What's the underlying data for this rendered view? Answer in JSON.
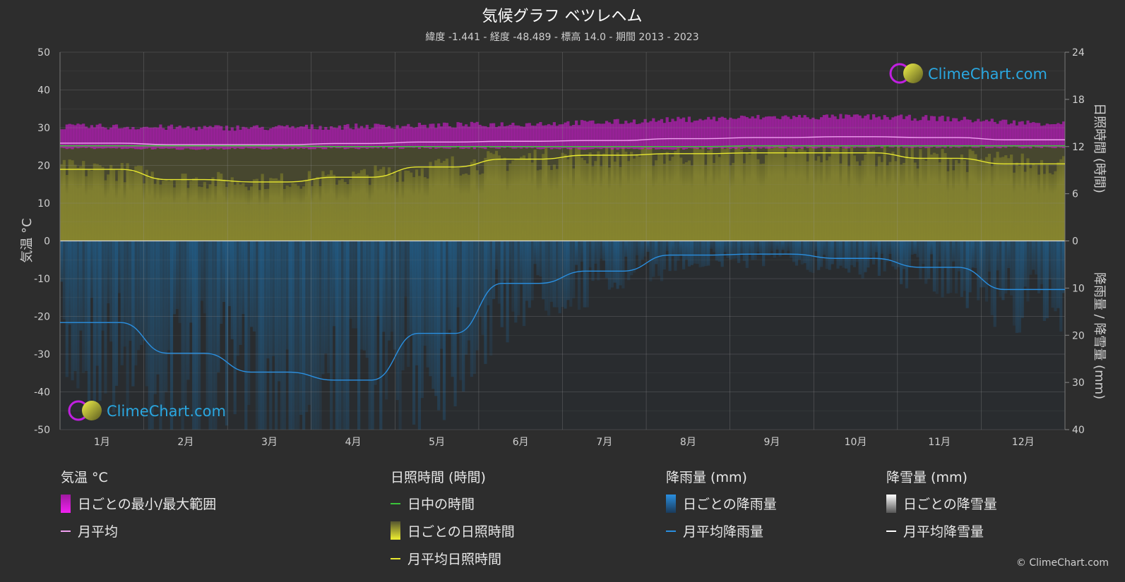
{
  "title": "気候グラフ ベツレヘム",
  "subtitle": "緯度 -1.441 - 経度 -48.489 - 標高 14.0 - 期間 2013 - 2023",
  "logo_text": "ClimeChart.com",
  "copyright": "© ClimeChart.com",
  "colors": {
    "background": "#2d2d2d",
    "temp_range": "#d21ad2",
    "temp_avg": "#f0a0f0",
    "daylight": "#3ac43a",
    "sunshine_fill": "#8c8a2e",
    "sunshine_avg": "#e8e830",
    "rain_fill": "#1f5e8c",
    "rain_avg": "#2a8fe0",
    "snow_avg": "#ffffff"
  },
  "chart_data": {
    "type": "line",
    "categories": [
      "1月",
      "2月",
      "3月",
      "4月",
      "5月",
      "6月",
      "7月",
      "8月",
      "9月",
      "10月",
      "11月",
      "12月"
    ],
    "y_left": {
      "label": "気温 °C",
      "ylim": [
        -50,
        50
      ],
      "ticks": [
        "50",
        "40",
        "30",
        "20",
        "10",
        "0",
        "-10",
        "-20",
        "-30",
        "-40",
        "-50"
      ]
    },
    "y_right_top": {
      "label": "日照時間 (時間)",
      "ylim": [
        0,
        24
      ],
      "ticks": [
        "24",
        "18",
        "12",
        "6",
        "0"
      ]
    },
    "y_right_bottom": {
      "label": "降雨量 / 降雪量 (mm)",
      "ylim": [
        0,
        40
      ],
      "ticks": [
        "10",
        "20",
        "30",
        "40"
      ]
    },
    "grid": true,
    "series": [
      {
        "name": "日ごとの最小/最大範囲",
        "axis": "temperature",
        "min": [
          24.8,
          24.6,
          24.7,
          24.8,
          24.9,
          24.8,
          24.6,
          24.7,
          24.9,
          25.0,
          25.1,
          25.0
        ],
        "max": [
          30.3,
          30.0,
          30.0,
          30.3,
          30.6,
          31.0,
          31.4,
          32.2,
          32.8,
          32.9,
          32.5,
          31.3
        ]
      },
      {
        "name": "月平均",
        "axis": "temperature",
        "values": [
          25.9,
          25.5,
          25.5,
          25.8,
          26.2,
          26.4,
          26.6,
          27.1,
          27.4,
          27.6,
          27.4,
          26.8
        ]
      },
      {
        "name": "日中の時間",
        "axis": "sunshine",
        "values": [
          12.1,
          12.1,
          12.1,
          12.0,
          12.0,
          12.0,
          12.0,
          12.0,
          12.1,
          12.1,
          12.1,
          12.1
        ]
      },
      {
        "name": "月平均日照時間",
        "axis": "sunshine",
        "values": [
          9.1,
          7.8,
          7.5,
          8.1,
          9.4,
          10.4,
          10.9,
          11.1,
          11.2,
          11.2,
          10.5,
          9.8
        ]
      },
      {
        "name": "月平均降雨量",
        "axis": "precipitation",
        "values": [
          17.3,
          23.8,
          27.8,
          29.5,
          19.6,
          9.0,
          6.4,
          3.0,
          2.8,
          3.7,
          5.6,
          10.3
        ]
      },
      {
        "name": "月平均降雪量",
        "axis": "precipitation",
        "values": [
          0,
          0,
          0,
          0,
          0,
          0,
          0,
          0,
          0,
          0,
          0,
          0
        ]
      }
    ]
  },
  "legend": {
    "temp": {
      "heading": "気温 °C",
      "range": "日ごとの最小/最大範囲",
      "avg": "月平均"
    },
    "sun": {
      "heading": "日照時間 (時間)",
      "daylight": "日中の時間",
      "daily": "日ごとの日照時間",
      "avg": "月平均日照時間"
    },
    "rain": {
      "heading": "降雨量 (mm)",
      "daily": "日ごとの降雨量",
      "avg": "月平均降雨量"
    },
    "snow": {
      "heading": "降雪量 (mm)",
      "daily": "日ごとの降雪量",
      "avg": "月平均降雪量"
    }
  }
}
